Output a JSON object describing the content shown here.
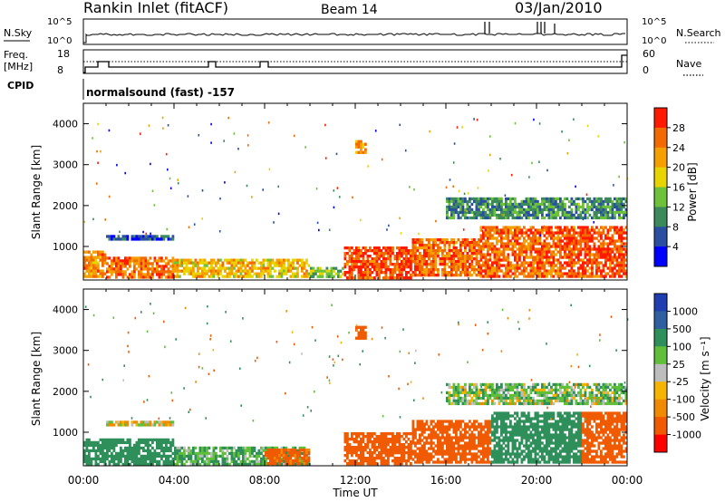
{
  "header": {
    "title": "Rankin Inlet (fitACF)",
    "beam": "Beam 14",
    "date": "03/Jan/2010"
  },
  "strips": {
    "nsky_label": "N.Sky",
    "nsky_ticks": [
      "10^5",
      "10^0"
    ],
    "nsearch_label": "N.Search",
    "nsearch_ticks": [
      "10^5",
      "10^0"
    ],
    "freq_label": "Freq.",
    "freq_unit": "[MHz]",
    "freq_ticks": [
      "18",
      "8"
    ],
    "nave_label": "Nave",
    "nave_ticks": [
      "60",
      "0"
    ],
    "cpid_label": "CPID",
    "cpid_value": "normalsound (fast) -157"
  },
  "x_axis": {
    "label": "Time UT",
    "ticks": [
      "00:00",
      "04:00",
      "08:00",
      "12:00",
      "16:00",
      "20:00",
      "00:00"
    ],
    "range_hours": [
      0,
      24
    ]
  },
  "colors": {
    "power_scale": [
      "#0000ff",
      "#2a4fa0",
      "#3c8a5c",
      "#6dc23a",
      "#e8d400",
      "#f5a000",
      "#f26a00",
      "#ff1a00"
    ],
    "velocity_scale": [
      "#ff0000",
      "#f05a00",
      "#f08a00",
      "#f5b400",
      "#bdbdbd",
      "#5fbf3a",
      "#2f8f5a",
      "#2f5fa0",
      "#1f3fb0"
    ]
  },
  "chart_data": [
    {
      "type": "heatmap",
      "title": "",
      "xlabel": "",
      "ylabel": "Slant Range [km]",
      "xlim": [
        0,
        24
      ],
      "ylim": [
        180,
        4500
      ],
      "yticks": [
        "1000",
        "2000",
        "3000",
        "4000"
      ],
      "colorbar": {
        "label": "Power [dB]",
        "ticks": [
          "4",
          "8",
          "12",
          "16",
          "20",
          "24",
          "28"
        ]
      },
      "regions": [
        {
          "t": [
            0.0,
            1.0
          ],
          "r": [
            250,
            900
          ],
          "value": 24
        },
        {
          "t": [
            1.0,
            4.0
          ],
          "r": [
            250,
            750
          ],
          "value": 26
        },
        {
          "t": [
            1.0,
            4.0
          ],
          "r": [
            1180,
            1280
          ],
          "value": 6
        },
        {
          "t": [
            4.0,
            10.0
          ],
          "r": [
            250,
            700
          ],
          "value": 20
        },
        {
          "t": [
            10.0,
            11.5
          ],
          "r": [
            250,
            500
          ],
          "value": 14
        },
        {
          "t": [
            11.5,
            14.5
          ],
          "r": [
            250,
            1000
          ],
          "value": 28
        },
        {
          "t": [
            12.0,
            12.5
          ],
          "r": [
            3300,
            3600
          ],
          "value": 22
        },
        {
          "t": [
            14.5,
            17.5
          ],
          "r": [
            300,
            1200
          ],
          "value": 26
        },
        {
          "t": [
            17.5,
            21.0
          ],
          "r": [
            300,
            1500
          ],
          "value": 26
        },
        {
          "t": [
            21.0,
            24.0
          ],
          "r": [
            300,
            1500
          ],
          "value": 28
        },
        {
          "t": [
            16.0,
            24.0
          ],
          "r": [
            1700,
            2200
          ],
          "value": 10
        }
      ]
    },
    {
      "type": "heatmap",
      "title": "",
      "xlabel": "Time UT",
      "ylabel": "Slant Range [km]",
      "xlim": [
        0,
        24
      ],
      "ylim": [
        180,
        4500
      ],
      "yticks": [
        "1000",
        "2000",
        "3000",
        "4000"
      ],
      "colorbar": {
        "label": "Velocity [m s⁻¹]",
        "ticks": [
          "1000",
          "500",
          "100",
          "25",
          "-25",
          "-100",
          "-500",
          "-1000"
        ]
      },
      "regions": [
        {
          "t": [
            0.0,
            4.0
          ],
          "r": [
            250,
            850
          ],
          "value": 200
        },
        {
          "t": [
            1.0,
            4.0
          ],
          "r": [
            1180,
            1280
          ],
          "value": 0
        },
        {
          "t": [
            4.0,
            10.0
          ],
          "r": [
            250,
            650
          ],
          "value": 100
        },
        {
          "t": [
            8.0,
            10.0
          ],
          "r": [
            250,
            600
          ],
          "value": -150
        },
        {
          "t": [
            11.5,
            14.5
          ],
          "r": [
            250,
            1000
          ],
          "value": -300
        },
        {
          "t": [
            12.0,
            12.5
          ],
          "r": [
            3300,
            3600
          ],
          "value": -300
        },
        {
          "t": [
            14.5,
            18.0
          ],
          "r": [
            300,
            1300
          ],
          "value": -300
        },
        {
          "t": [
            18.0,
            22.0
          ],
          "r": [
            300,
            1500
          ],
          "value": 200
        },
        {
          "t": [
            22.0,
            24.0
          ],
          "r": [
            300,
            1500
          ],
          "value": -200
        },
        {
          "t": [
            16.0,
            24.0
          ],
          "r": [
            1700,
            2200
          ],
          "value": 60
        }
      ]
    }
  ]
}
